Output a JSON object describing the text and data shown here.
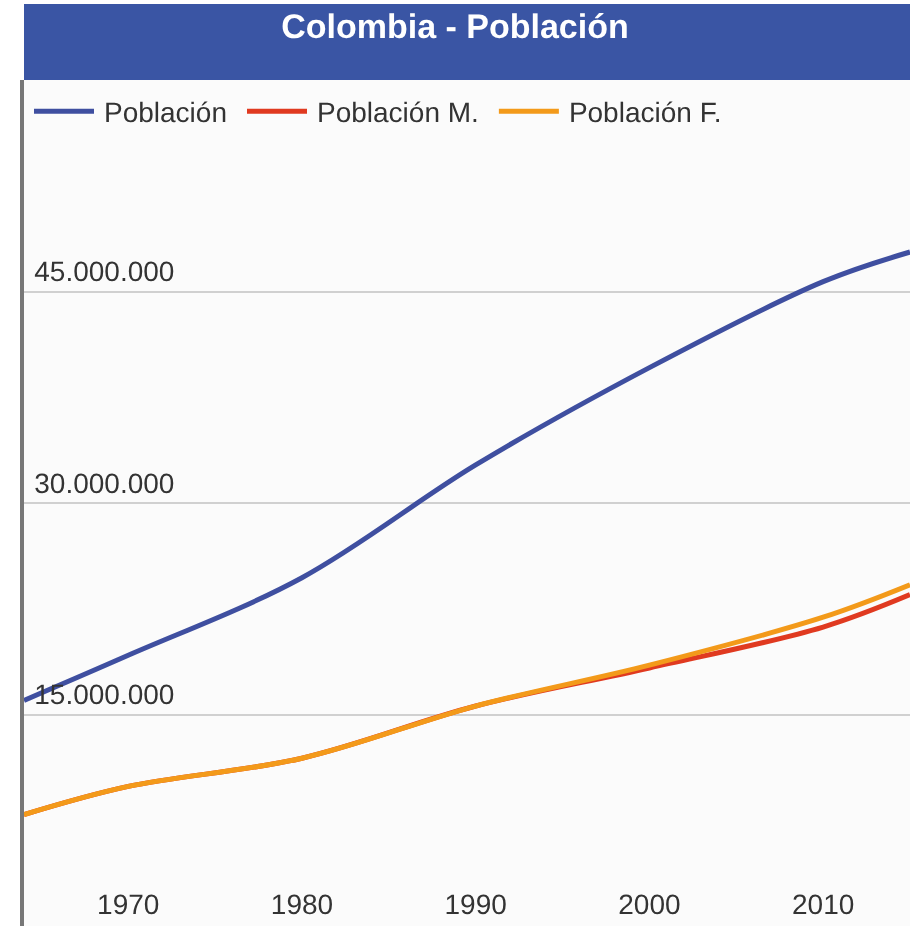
{
  "chart_data": {
    "type": "line",
    "title": "Colombia - Población",
    "x": [
      1964,
      1970,
      1980,
      1990,
      2000,
      2010,
      2015
    ],
    "series": [
      {
        "name": "Población",
        "color": "#3f4fa0",
        "values": [
          16000000,
          19200000,
          24700000,
          32700000,
          39600000,
          45700000,
          47800000
        ]
      },
      {
        "name": "Población M.",
        "color": "#e03a20",
        "values": [
          7900000,
          9900000,
          11900000,
          15600000,
          18300000,
          21200000,
          23500000
        ]
      },
      {
        "name": "Población F.",
        "color": "#f39a1a",
        "values": [
          7900000,
          9900000,
          11900000,
          15600000,
          18500000,
          21900000,
          24200000
        ]
      }
    ],
    "xlim": [
      1964,
      2015
    ],
    "ylim": [
      0,
      60000000
    ],
    "xticks": [
      1970,
      1980,
      1990,
      2000,
      2010
    ],
    "yticks": [
      {
        "value": 15000000,
        "label": "15.000.000"
      },
      {
        "value": 30000000,
        "label": "30.000.000"
      },
      {
        "value": 45000000,
        "label": "45.000.000"
      }
    ],
    "grid": "y",
    "legend": "top left",
    "marker": "none",
    "line_style": "solid"
  }
}
